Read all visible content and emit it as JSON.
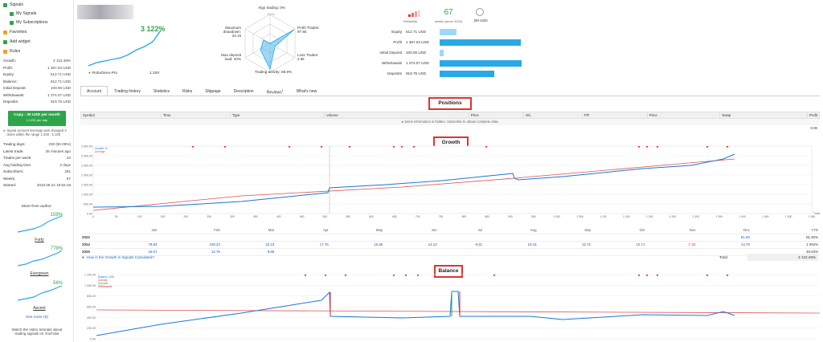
{
  "sidebar": {
    "nav": [
      {
        "label": "Signals",
        "color": "#2ea54b"
      },
      {
        "label": "My Signals",
        "color": "#2ea54b"
      },
      {
        "label": "My Subscriptions",
        "color": "#2ea54b"
      },
      {
        "label": "Favorites",
        "color": "#f0a020"
      },
      {
        "label": "Add widget",
        "color": "#2ea54b"
      },
      {
        "label": "Rules",
        "color": "#f0a020"
      }
    ],
    "stats": [
      {
        "k": "Growth:",
        "v": "3 122.48%"
      },
      {
        "k": "Profit:",
        "v": "1 367.03 USD"
      },
      {
        "k": "Equity:",
        "v": "512.71 USD"
      },
      {
        "k": "Balance:",
        "v": "512.71 USD"
      },
      {
        "k": "Initial Deposit:",
        "v": "100.00 USD"
      },
      {
        "k": "Withdrawals:",
        "v": "1 374.07 USD"
      },
      {
        "k": "Deposits:",
        "v": "919.75 USD"
      }
    ],
    "copy_line1": "Copy - 30 USD per month",
    "copy_line2": "1 USD per day",
    "leverage_note": "Signal account leverage was changed 3 times within the range 1:100 - 1:100",
    "stats2": [
      {
        "k": "Trading days:",
        "v": "230 (60.09%)"
      },
      {
        "k": "Latest trade:",
        "v": "26 minutes ago"
      },
      {
        "k": "Trades per week:",
        "v": "24"
      },
      {
        "k": "Avg holding time:",
        "v": "2 days"
      },
      {
        "k": "Subscribers:",
        "v": "291"
      },
      {
        "k": "Weeks:",
        "v": "67"
      },
      {
        "k": "Started:",
        "v": "2023.09.24 19:53:18"
      }
    ],
    "more_title": "More from author:",
    "authors": [
      {
        "pct": "159%",
        "name": "Forty"
      },
      {
        "pct": "779%",
        "name": "Evergreen"
      },
      {
        "pct": "56%",
        "name": "Ascent"
      }
    ],
    "see_more": "See more (5)",
    "footer": "Watch the video tutorials about trading signals on YouTube"
  },
  "header": {
    "growth_big": "3 122%",
    "broker": "Roboforex-Pro",
    "leverage": "1:100",
    "reliability_label": "Reliability",
    "weeks_value": "67",
    "weeks_label": "weeks (since 2023)",
    "price_value": "2M USD"
  },
  "radar": {
    "labels": [
      {
        "t": "Algo trading: 0%"
      },
      {
        "t": "Profit Trades: 97.5k"
      },
      {
        "t": "Loss Trades: 2.5k"
      },
      {
        "t": "Trading activity: 68.9%"
      },
      {
        "t": "Max deposit load: 40%"
      },
      {
        "t": "Maximum drawdown: 24.1k"
      }
    ],
    "center_label": "100%"
  },
  "summary_bars": [
    {
      "label": "Equity",
      "value": "512.71 USD",
      "fraction": 0.21
    },
    {
      "label": "Profit",
      "value": "1 367.03 USD",
      "fraction": 0.99
    },
    {
      "label": "Initial Deposit",
      "value": "100.00 USD",
      "fraction": 0.05
    },
    {
      "label": "Withdrawals",
      "value": "1 374.07 USD",
      "fraction": 1.0
    },
    {
      "label": "Deposits",
      "value": "919.75 USD",
      "fraction": 0.67
    }
  ],
  "tabs": [
    "Account",
    "Trading history",
    "Statistics",
    "Risks",
    "Slippage",
    "Description",
    "Reviews",
    "What's new"
  ],
  "reviews_count": "1",
  "positions": {
    "title": "Positions",
    "columns": [
      "Symbol",
      "Time",
      "Type",
      "Volume",
      "Price",
      "S/L",
      "T/P",
      "Price",
      "Swap",
      "Profit"
    ],
    "hidden_note": "Some information is hidden. Subscribe to obtain complete data.",
    "total": "0.00"
  },
  "growth": {
    "title": "Growth",
    "legend": [
      "Growth, %",
      "Average"
    ],
    "y_ticks": [
      "3 500.00",
      "3 000.00",
      "2 500.00",
      "2 000.00",
      "1 500.00",
      "1 000.00",
      "500.00",
      "0.00"
    ],
    "x_ticks": [
      "0",
      "50",
      "100",
      "150",
      "200",
      "250",
      "300",
      "350",
      "400",
      "450",
      "500",
      "550",
      "600",
      "650",
      "700",
      "750",
      "800",
      "850",
      "900",
      "950",
      "1 000",
      "1 050",
      "1 100",
      "1 150",
      "1 200",
      "1 250",
      "1 300",
      "1 350",
      "1 400",
      "1 450",
      "1 500",
      "1 550"
    ],
    "trades_label": "Trades",
    "months": [
      "Jan",
      "Feb",
      "Mar",
      "Apr",
      "May",
      "Jun",
      "Jul",
      "Aug",
      "Sep",
      "Oct",
      "Nov",
      "Dec",
      "YTD"
    ],
    "years": [
      {
        "year": "2023",
        "vals": [
          "",
          "",
          "",
          "",
          "",
          "",
          "",
          "",
          "",
          "",
          "",
          "81.60",
          "81.60%"
        ]
      },
      {
        "year": "2024",
        "vals": [
          "78.83",
          "109.23",
          "22.23",
          "17.76",
          "15.86",
          "14.12",
          "9.51",
          "19.15",
          "12.72",
          "10.71",
          "-7.34",
          "14.76",
          "1 094%"
        ]
      },
      {
        "year": "2025",
        "vals": [
          "19.07",
          "12.76",
          "9.86",
          "",
          "",
          "",
          "",
          "",
          "",
          "",
          "",
          "",
          "48.63%"
        ]
      }
    ],
    "how_link": "How is the Growth in Signals Calculated?",
    "total_label": "Total:",
    "total_value": "3 122.48%"
  },
  "balance": {
    "title": "Balance",
    "legend": [
      "Balance, USD",
      "Average",
      "Deposits",
      "Withdrawals"
    ],
    "y_ticks": [
      "1 200.00",
      "1 000.00",
      "800.00",
      "600.00",
      "400.00",
      "200.00",
      "0.00"
    ]
  },
  "colors": {
    "accent": "#2ea54b",
    "line": "#1a78d8",
    "average": "#e05050",
    "bars": "#29a9e6",
    "marker": "#d33"
  }
}
